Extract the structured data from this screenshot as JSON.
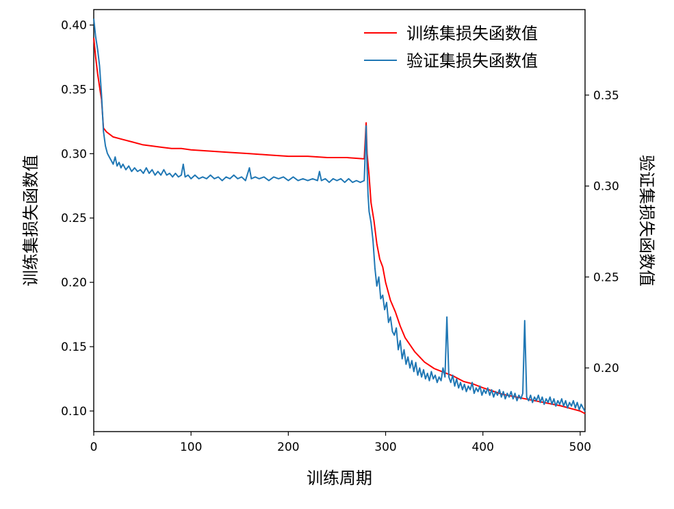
{
  "chart_data": {
    "type": "line",
    "xlabel": "训练周期",
    "ylabel_left": "训练集损失函数值",
    "ylabel_right": "验证集损失函数值",
    "xlim": [
      0,
      505
    ],
    "ylim_left": [
      0.084,
      0.412
    ],
    "ylim_right": [
      0.165,
      0.397
    ],
    "x_ticks": [
      0,
      100,
      200,
      300,
      400,
      500
    ],
    "y_ticks_left": [
      0.1,
      0.15,
      0.2,
      0.25,
      0.3,
      0.35,
      0.4
    ],
    "y_ticks_right": [
      0.2,
      0.25,
      0.3,
      0.35
    ],
    "legend_position": "top-right",
    "grid": false,
    "series": [
      {
        "name": "训练集损失函数值",
        "axis": "left",
        "color": "#ff0000",
        "points": [
          [
            0,
            0.39
          ],
          [
            2,
            0.375
          ],
          [
            4,
            0.362
          ],
          [
            6,
            0.352
          ],
          [
            8,
            0.342
          ],
          [
            10,
            0.32
          ],
          [
            13,
            0.317
          ],
          [
            20,
            0.313
          ],
          [
            30,
            0.311
          ],
          [
            40,
            0.309
          ],
          [
            50,
            0.307
          ],
          [
            60,
            0.306
          ],
          [
            70,
            0.305
          ],
          [
            80,
            0.304
          ],
          [
            90,
            0.304
          ],
          [
            100,
            0.303
          ],
          [
            120,
            0.302
          ],
          [
            140,
            0.301
          ],
          [
            160,
            0.3
          ],
          [
            180,
            0.299
          ],
          [
            200,
            0.298
          ],
          [
            220,
            0.298
          ],
          [
            240,
            0.297
          ],
          [
            260,
            0.297
          ],
          [
            278,
            0.296
          ],
          [
            280,
            0.324
          ],
          [
            281,
            0.3
          ],
          [
            283,
            0.283
          ],
          [
            285,
            0.262
          ],
          [
            288,
            0.248
          ],
          [
            291,
            0.23
          ],
          [
            294,
            0.218
          ],
          [
            297,
            0.212
          ],
          [
            300,
            0.2
          ],
          [
            305,
            0.186
          ],
          [
            310,
            0.177
          ],
          [
            315,
            0.166
          ],
          [
            320,
            0.157
          ],
          [
            330,
            0.146
          ],
          [
            340,
            0.138
          ],
          [
            350,
            0.133
          ],
          [
            360,
            0.13
          ],
          [
            370,
            0.127
          ],
          [
            380,
            0.123
          ],
          [
            390,
            0.121
          ],
          [
            400,
            0.118
          ],
          [
            420,
            0.113
          ],
          [
            440,
            0.11
          ],
          [
            460,
            0.107
          ],
          [
            480,
            0.104
          ],
          [
            490,
            0.102
          ],
          [
            500,
            0.1
          ],
          [
            505,
            0.098
          ]
        ]
      },
      {
        "name": "验证集损失函数值",
        "axis": "right",
        "color": "#1f77b4",
        "points": [
          [
            0,
            0.392
          ],
          [
            2,
            0.382
          ],
          [
            4,
            0.375
          ],
          [
            6,
            0.366
          ],
          [
            8,
            0.35
          ],
          [
            9,
            0.34
          ],
          [
            10,
            0.33
          ],
          [
            12,
            0.322
          ],
          [
            14,
            0.318
          ],
          [
            16,
            0.316
          ],
          [
            18,
            0.314
          ],
          [
            20,
            0.312
          ],
          [
            22,
            0.316
          ],
          [
            24,
            0.311
          ],
          [
            26,
            0.313
          ],
          [
            28,
            0.31
          ],
          [
            30,
            0.312
          ],
          [
            33,
            0.309
          ],
          [
            36,
            0.311
          ],
          [
            39,
            0.308
          ],
          [
            42,
            0.31
          ],
          [
            45,
            0.308
          ],
          [
            48,
            0.309
          ],
          [
            51,
            0.307
          ],
          [
            54,
            0.31
          ],
          [
            57,
            0.307
          ],
          [
            60,
            0.309
          ],
          [
            63,
            0.306
          ],
          [
            66,
            0.308
          ],
          [
            69,
            0.306
          ],
          [
            72,
            0.309
          ],
          [
            75,
            0.306
          ],
          [
            78,
            0.307
          ],
          [
            81,
            0.305
          ],
          [
            84,
            0.307
          ],
          [
            87,
            0.305
          ],
          [
            90,
            0.306
          ],
          [
            92,
            0.312
          ],
          [
            94,
            0.305
          ],
          [
            97,
            0.306
          ],
          [
            100,
            0.304
          ],
          [
            104,
            0.306
          ],
          [
            108,
            0.304
          ],
          [
            112,
            0.305
          ],
          [
            116,
            0.304
          ],
          [
            120,
            0.306
          ],
          [
            124,
            0.304
          ],
          [
            128,
            0.305
          ],
          [
            132,
            0.303
          ],
          [
            136,
            0.305
          ],
          [
            140,
            0.304
          ],
          [
            144,
            0.306
          ],
          [
            148,
            0.304
          ],
          [
            152,
            0.305
          ],
          [
            156,
            0.303
          ],
          [
            160,
            0.31
          ],
          [
            162,
            0.304
          ],
          [
            166,
            0.305
          ],
          [
            170,
            0.304
          ],
          [
            175,
            0.305
          ],
          [
            180,
            0.303
          ],
          [
            185,
            0.305
          ],
          [
            190,
            0.304
          ],
          [
            195,
            0.305
          ],
          [
            200,
            0.303
          ],
          [
            205,
            0.305
          ],
          [
            210,
            0.303
          ],
          [
            215,
            0.304
          ],
          [
            220,
            0.303
          ],
          [
            225,
            0.304
          ],
          [
            230,
            0.303
          ],
          [
            232,
            0.308
          ],
          [
            234,
            0.303
          ],
          [
            238,
            0.304
          ],
          [
            242,
            0.302
          ],
          [
            246,
            0.304
          ],
          [
            250,
            0.303
          ],
          [
            254,
            0.304
          ],
          [
            258,
            0.302
          ],
          [
            262,
            0.304
          ],
          [
            266,
            0.302
          ],
          [
            270,
            0.303
          ],
          [
            274,
            0.302
          ],
          [
            278,
            0.303
          ],
          [
            280,
            0.333
          ],
          [
            281,
            0.31
          ],
          [
            282,
            0.295
          ],
          [
            283,
            0.286
          ],
          [
            285,
            0.28
          ],
          [
            287,
            0.27
          ],
          [
            289,
            0.255
          ],
          [
            291,
            0.245
          ],
          [
            293,
            0.25
          ],
          [
            295,
            0.238
          ],
          [
            297,
            0.24
          ],
          [
            299,
            0.232
          ],
          [
            301,
            0.236
          ],
          [
            303,
            0.225
          ],
          [
            305,
            0.228
          ],
          [
            307,
            0.22
          ],
          [
            309,
            0.218
          ],
          [
            311,
            0.222
          ],
          [
            313,
            0.21
          ],
          [
            315,
            0.215
          ],
          [
            317,
            0.205
          ],
          [
            319,
            0.21
          ],
          [
            321,
            0.202
          ],
          [
            323,
            0.206
          ],
          [
            325,
            0.2
          ],
          [
            327,
            0.204
          ],
          [
            329,
            0.198
          ],
          [
            331,
            0.203
          ],
          [
            333,
            0.196
          ],
          [
            335,
            0.2
          ],
          [
            337,
            0.195
          ],
          [
            339,
            0.199
          ],
          [
            341,
            0.194
          ],
          [
            343,
            0.197
          ],
          [
            345,
            0.193
          ],
          [
            347,
            0.198
          ],
          [
            349,
            0.194
          ],
          [
            351,
            0.196
          ],
          [
            353,
            0.192
          ],
          [
            355,
            0.195
          ],
          [
            357,
            0.193
          ],
          [
            359,
            0.2
          ],
          [
            361,
            0.195
          ],
          [
            363,
            0.228
          ],
          [
            365,
            0.195
          ],
          [
            367,
            0.192
          ],
          [
            369,
            0.196
          ],
          [
            371,
            0.19
          ],
          [
            373,
            0.194
          ],
          [
            375,
            0.189
          ],
          [
            377,
            0.192
          ],
          [
            379,
            0.188
          ],
          [
            381,
            0.191
          ],
          [
            383,
            0.187
          ],
          [
            385,
            0.19
          ],
          [
            387,
            0.188
          ],
          [
            389,
            0.192
          ],
          [
            391,
            0.186
          ],
          [
            393,
            0.189
          ],
          [
            395,
            0.187
          ],
          [
            397,
            0.19
          ],
          [
            399,
            0.185
          ],
          [
            401,
            0.188
          ],
          [
            403,
            0.186
          ],
          [
            405,
            0.189
          ],
          [
            407,
            0.185
          ],
          [
            409,
            0.188
          ],
          [
            411,
            0.184
          ],
          [
            413,
            0.187
          ],
          [
            415,
            0.185
          ],
          [
            417,
            0.188
          ],
          [
            419,
            0.184
          ],
          [
            421,
            0.187
          ],
          [
            423,
            0.183
          ],
          [
            425,
            0.186
          ],
          [
            427,
            0.184
          ],
          [
            429,
            0.187
          ],
          [
            431,
            0.183
          ],
          [
            433,
            0.186
          ],
          [
            435,
            0.182
          ],
          [
            437,
            0.185
          ],
          [
            439,
            0.183
          ],
          [
            441,
            0.186
          ],
          [
            443,
            0.226
          ],
          [
            445,
            0.184
          ],
          [
            447,
            0.182
          ],
          [
            449,
            0.185
          ],
          [
            451,
            0.181
          ],
          [
            453,
            0.184
          ],
          [
            455,
            0.182
          ],
          [
            457,
            0.185
          ],
          [
            459,
            0.181
          ],
          [
            461,
            0.184
          ],
          [
            463,
            0.18
          ],
          [
            465,
            0.183
          ],
          [
            467,
            0.181
          ],
          [
            469,
            0.184
          ],
          [
            471,
            0.18
          ],
          [
            473,
            0.183
          ],
          [
            475,
            0.179
          ],
          [
            477,
            0.182
          ],
          [
            479,
            0.18
          ],
          [
            481,
            0.183
          ],
          [
            483,
            0.179
          ],
          [
            485,
            0.182
          ],
          [
            487,
            0.178
          ],
          [
            489,
            0.181
          ],
          [
            491,
            0.179
          ],
          [
            493,
            0.182
          ],
          [
            495,
            0.178
          ],
          [
            497,
            0.181
          ],
          [
            499,
            0.177
          ],
          [
            501,
            0.18
          ],
          [
            503,
            0.178
          ],
          [
            505,
            0.176
          ]
        ]
      }
    ]
  }
}
